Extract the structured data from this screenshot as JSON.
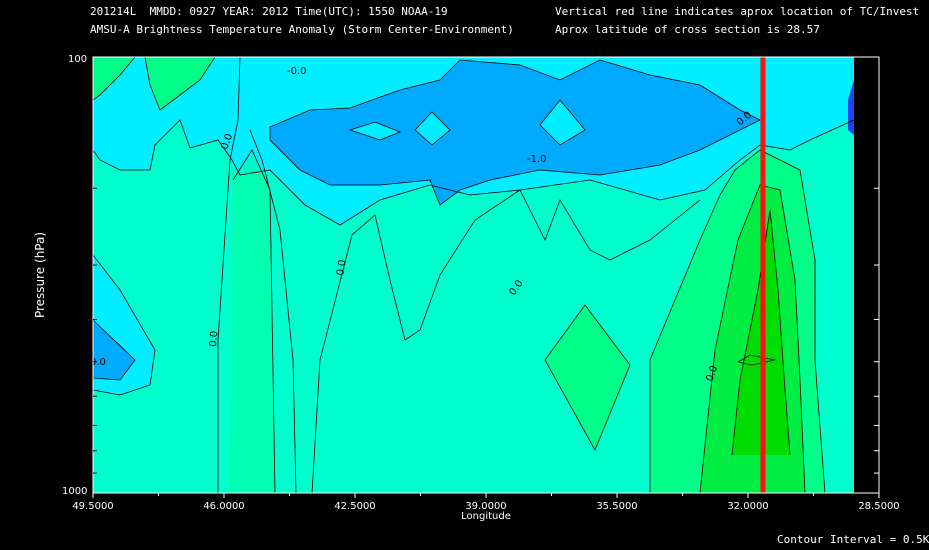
{
  "header": {
    "line1_left": "201214L  MMDD: 0927 YEAR: 2012 Time(UTC): 1550 NOAA-19",
    "line2_left": "AMSU-A Brightness Temperature Anomaly (Storm Center-Environment)",
    "line1_right": "Vertical red line indicates aprox location of TC/Invest",
    "line2_right": "Aprox latitude of cross section is 28.57"
  },
  "footer": {
    "contour_interval": "Contour Interval = 0.5K"
  },
  "chart_data": {
    "type": "contour",
    "xlabel": "Longitude",
    "ylabel": "Pressure (hPa)",
    "xlim": [
      49.5,
      28.5
    ],
    "ylim": [
      1000,
      100
    ],
    "y_scale": "log",
    "x_ticks": [
      "49.5000",
      "46.0000",
      "42.5000",
      "39.0000",
      "35.5000",
      "32.0000",
      "28.5000"
    ],
    "y_ticks": [
      "100",
      "1000"
    ],
    "tc_longitude": 31.6,
    "contour_labels": [
      "-0.0",
      "0.0",
      "0.0",
      "0.0",
      "0.0",
      "0.0",
      "0.0",
      "-1.0",
      "0.0"
    ],
    "levels": [
      {
        "range": "< -1.0",
        "color": "#2244ee"
      },
      {
        "range": "-1.0 to -0.5",
        "color": "#00aaff"
      },
      {
        "range": "-0.5 to 0.0",
        "color": "#00eeff"
      },
      {
        "range": "0.0 to 0.5",
        "color": "#00ffcc"
      },
      {
        "range": "0.5 to 1.0",
        "color": "#00ff88"
      },
      {
        "range": "1.0 to 1.5",
        "color": "#00ee44"
      },
      {
        "range": "> 1.5",
        "color": "#00dd00"
      }
    ],
    "colors": {
      "tc_line": "#ff1111",
      "background": "#000000"
    }
  }
}
